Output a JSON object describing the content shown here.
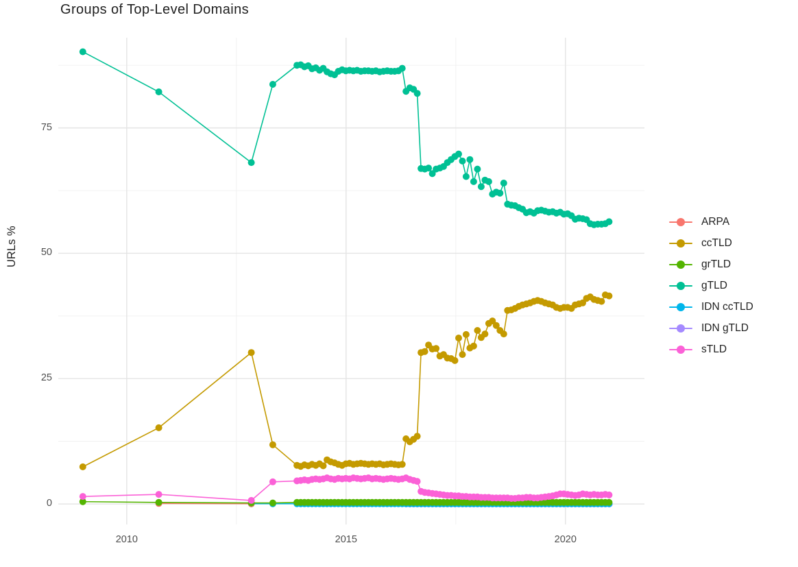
{
  "chart": {
    "title": "Groups of Top-Level Domains",
    "ylabel": "URLs %"
  },
  "colors": {
    "title_text": "#1f1f1f",
    "axis_text": "#4d4d4d",
    "grid_major": "#e4e4e4",
    "grid_minor": "#f0f0f0",
    "background": "#ffffff"
  },
  "chart_data": {
    "type": "line",
    "title": "Groups of Top-Level Domains",
    "xlabel": "",
    "ylabel": "URLs %",
    "legend_position": "right",
    "grid": true,
    "xlim": [
      2008.44,
      2021.8
    ],
    "ylim": [
      -4.1,
      93.0
    ],
    "x_ticks": [
      {
        "v": 2010,
        "label": "2010"
      },
      {
        "v": 2015,
        "label": "2015"
      },
      {
        "v": 2020,
        "label": "2020"
      }
    ],
    "x_minor": [
      2012.5,
      2017.5
    ],
    "y_ticks": [
      {
        "v": 0,
        "label": "0"
      },
      {
        "v": 25,
        "label": "25"
      },
      {
        "v": 50,
        "label": "50"
      },
      {
        "v": 75,
        "label": "75"
      }
    ],
    "y_minor": [
      12.5,
      37.5,
      62.5,
      87.5
    ],
    "series": [
      {
        "name": "ARPA",
        "color": "#F8766D",
        "points": [
          [
            2010.73,
            0.1
          ],
          [
            2012.84,
            0.05
          ]
        ]
      },
      {
        "name": "ccTLD",
        "color": "#C49A00",
        "points": [
          [
            2009.0,
            7.4
          ],
          [
            2010.73,
            15.2
          ],
          [
            2012.84,
            30.2
          ],
          [
            2013.33,
            11.8
          ]
        ],
        "dense": {
          "x0": 2013.88,
          "dx": 0.0857,
          "y": [
            7.7,
            7.5,
            7.8,
            7.6,
            7.9,
            7.7,
            8.0,
            7.6,
            8.8,
            8.4,
            8.2,
            7.9,
            7.7,
            8.0,
            8.1,
            7.9,
            8.0,
            8.1,
            8.0,
            7.9,
            8.0,
            7.9,
            8.0,
            7.8,
            7.9,
            8.0,
            7.9,
            7.8,
            7.9,
            13.0,
            12.4,
            12.9,
            13.5,
            30.2,
            30.4,
            31.7,
            30.9,
            31.0,
            29.5,
            29.8,
            29.1,
            29.0,
            28.6,
            33.1,
            29.8,
            33.8,
            31.1,
            31.5,
            34.6,
            33.2,
            33.9,
            36.0,
            36.5,
            35.6,
            34.6,
            33.9,
            38.6,
            38.7,
            39.0,
            39.4,
            39.7,
            39.9,
            40.1,
            40.4,
            40.6,
            40.4,
            40.1,
            39.9,
            39.7,
            39.2,
            39.0,
            39.2,
            39.2,
            39.0,
            39.7,
            39.9,
            40.1,
            41.0,
            41.3,
            40.8,
            40.6,
            40.4,
            41.7,
            41.5
          ]
        }
      },
      {
        "name": "grTLD",
        "color": "#53B400",
        "points": [
          [
            2009.0,
            0.45
          ],
          [
            2010.73,
            0.3
          ],
          [
            2012.84,
            0.2
          ],
          [
            2013.33,
            0.2
          ]
        ],
        "dense": {
          "x0": 2013.88,
          "dx": 0.0857,
          "n": 84,
          "const": 0.3
        }
      },
      {
        "name": "gTLD",
        "color": "#00C094",
        "points": [
          [
            2009.0,
            90.2
          ],
          [
            2010.73,
            82.2
          ],
          [
            2012.84,
            68.1
          ],
          [
            2013.33,
            83.7
          ]
        ],
        "dense": {
          "x0": 2013.88,
          "dx": 0.0857,
          "y": [
            87.5,
            87.6,
            87.2,
            87.4,
            86.8,
            87.0,
            86.5,
            86.9,
            86.2,
            85.8,
            85.6,
            86.3,
            86.6,
            86.4,
            86.5,
            86.4,
            86.5,
            86.3,
            86.4,
            86.4,
            86.3,
            86.4,
            86.2,
            86.3,
            86.4,
            86.3,
            86.3,
            86.4,
            86.9,
            82.3,
            83.0,
            82.7,
            81.9,
            66.9,
            66.8,
            67.0,
            65.9,
            66.8,
            67.0,
            67.3,
            68.1,
            68.7,
            69.3,
            69.8,
            68.4,
            65.3,
            68.7,
            64.3,
            66.8,
            63.3,
            64.6,
            64.3,
            61.8,
            62.2,
            62.0,
            64.0,
            59.8,
            59.6,
            59.5,
            59.1,
            58.8,
            58.1,
            58.3,
            58.0,
            58.5,
            58.6,
            58.4,
            58.2,
            58.3,
            58.0,
            58.2,
            57.8,
            57.9,
            57.5,
            56.8,
            57.0,
            56.9,
            56.7,
            55.9,
            55.7,
            55.8,
            55.8,
            55.9,
            56.3
          ]
        }
      },
      {
        "name": "IDN ccTLD",
        "color": "#00B6EB",
        "points": [
          [
            2012.84,
            0.05
          ],
          [
            2013.33,
            0.05
          ]
        ],
        "dense": {
          "x0": 2013.88,
          "dx": 0.0857,
          "n": 84,
          "const": 0.05
        }
      },
      {
        "name": "IDN gTLD",
        "color": "#A58AFF",
        "points": [],
        "dense": {
          "x0": 2016.37,
          "dx": 0.0857,
          "n": 55,
          "const": 0.0
        }
      },
      {
        "name": "sTLD",
        "color": "#FB61D7",
        "points": [
          [
            2009.0,
            1.5
          ],
          [
            2010.73,
            1.9
          ],
          [
            2012.84,
            0.7
          ],
          [
            2013.33,
            4.4
          ]
        ],
        "dense": {
          "x0": 2013.88,
          "dx": 0.0857,
          "y": [
            4.6,
            4.7,
            4.8,
            4.7,
            4.9,
            5.0,
            4.9,
            5.0,
            5.2,
            5.0,
            4.9,
            5.1,
            5.0,
            5.1,
            5.0,
            5.2,
            5.1,
            5.0,
            5.1,
            5.2,
            5.0,
            5.1,
            5.0,
            4.9,
            5.0,
            5.1,
            5.0,
            4.9,
            5.0,
            5.2,
            4.9,
            4.7,
            4.5,
            2.5,
            2.3,
            2.2,
            2.1,
            2.0,
            1.9,
            1.8,
            1.7,
            1.7,
            1.6,
            1.6,
            1.5,
            1.5,
            1.4,
            1.4,
            1.4,
            1.3,
            1.3,
            1.3,
            1.2,
            1.2,
            1.2,
            1.2,
            1.2,
            1.1,
            1.1,
            1.2,
            1.2,
            1.3,
            1.3,
            1.2,
            1.2,
            1.3,
            1.4,
            1.5,
            1.6,
            1.8,
            2.0,
            2.0,
            1.9,
            1.8,
            1.7,
            1.8,
            2.0,
            1.9,
            1.8,
            1.9,
            1.8,
            1.8,
            1.9,
            1.8
          ]
        }
      }
    ]
  }
}
